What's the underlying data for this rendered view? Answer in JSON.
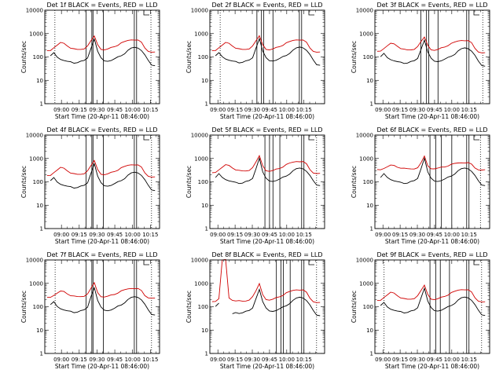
{
  "chart_data": [
    {
      "type": "line",
      "title": "Det 1f BLACK = Events, RED = LLD",
      "ylabel": "Counts/sec",
      "xlabel": "Start Time (20-Apr-11 08:46:00)",
      "yscale": "log",
      "ylim": [
        1,
        10000
      ],
      "y_tick_labels": [
        "1",
        "10",
        "100",
        "1000",
        "10000"
      ],
      "x_tick_labels": [
        "09:00",
        "09:15",
        "09:30",
        "09:45",
        "10:00",
        "10:15"
      ],
      "series": [
        {
          "color": "#000000",
          "values": [
            null,
            110,
            150,
            105,
            82,
            70,
            62,
            58,
            55,
            58,
            62,
            68,
            90,
            240,
            630,
            170,
            90,
            72,
            68,
            70,
            80,
            95,
            115,
            140,
            180,
            230,
            260,
            250,
            200,
            120,
            70,
            48,
            44
          ]
        },
        {
          "color": "#d00000",
          "values": [
            180,
            200,
            260,
            320,
            400,
            360,
            300,
            240,
            210,
            200,
            210,
            230,
            320,
            480,
            780,
            360,
            220,
            200,
            210,
            240,
            280,
            320,
            380,
            440,
            510,
            560,
            560,
            520,
            420,
            260,
            180,
            160,
            155
          ]
        }
      ]
    },
    {
      "type": "line",
      "title": "Det 2f BLACK = Events, RED = LLD",
      "ylabel": "Counts/sec",
      "xlabel": "Start Time (20-Apr-11 08:46:00)",
      "yscale": "log",
      "ylim": [
        1,
        10000
      ],
      "y_tick_labels": [
        "1",
        "10",
        "100",
        "1000",
        "10000"
      ],
      "x_tick_labels": [
        "09:00",
        "09:15",
        "09:30",
        "09:45",
        "10:00",
        "10:15"
      ],
      "series": [
        {
          "color": "#000000",
          "values": [
            null,
            110,
            150,
            110,
            85,
            72,
            64,
            60,
            57,
            60,
            64,
            70,
            92,
            250,
            650,
            175,
            92,
            74,
            70,
            72,
            82,
            98,
            118,
            145,
            185,
            235,
            265,
            255,
            205,
            125,
            72,
            50,
            46
          ]
        },
        {
          "color": "#d00000",
          "values": [
            180,
            200,
            260,
            320,
            400,
            360,
            300,
            240,
            210,
            200,
            210,
            230,
            320,
            480,
            790,
            360,
            220,
            200,
            210,
            240,
            280,
            320,
            380,
            440,
            510,
            560,
            560,
            520,
            420,
            260,
            180,
            160,
            155
          ]
        }
      ]
    },
    {
      "type": "line",
      "title": "Det 3f BLACK = Events, RED = LLD",
      "ylabel": "Counts/sec",
      "xlabel": "Start Time (20-Apr-11 08:46:00)",
      "yscale": "log",
      "ylim": [
        1,
        10000
      ],
      "y_tick_labels": [
        "1",
        "10",
        "100",
        "1000",
        "10000"
      ],
      "x_tick_labels": [
        "09:00",
        "09:15",
        "09:30",
        "09:45",
        "10:00",
        "10:15"
      ],
      "series": [
        {
          "color": "#000000",
          "values": [
            null,
            100,
            140,
            100,
            80,
            68,
            60,
            56,
            54,
            56,
            60,
            66,
            86,
            220,
            560,
            160,
            86,
            70,
            66,
            68,
            76,
            90,
            110,
            130,
            170,
            215,
            245,
            235,
            190,
            115,
            66,
            46,
            42
          ]
        },
        {
          "color": "#d00000",
          "values": [
            170,
            190,
            240,
            300,
            370,
            340,
            290,
            230,
            200,
            190,
            200,
            220,
            300,
            450,
            700,
            340,
            210,
            190,
            200,
            230,
            270,
            310,
            360,
            420,
            480,
            530,
            530,
            490,
            400,
            250,
            170,
            150,
            145
          ]
        }
      ]
    },
    {
      "type": "line",
      "title": "Det 4f BLACK = Events, RED = LLD",
      "ylabel": "Counts/sec",
      "xlabel": "Start Time (20-Apr-11 08:46:00)",
      "yscale": "log",
      "ylim": [
        1,
        10000
      ],
      "y_tick_labels": [
        "1",
        "10",
        "100",
        "1000",
        "10000"
      ],
      "x_tick_labels": [
        "09:00",
        "09:15",
        "09:30",
        "09:45",
        "10:00",
        "10:15"
      ],
      "series": [
        {
          "color": "#000000",
          "values": [
            null,
            110,
            150,
            105,
            82,
            70,
            62,
            58,
            55,
            58,
            62,
            68,
            90,
            240,
            640,
            170,
            90,
            72,
            68,
            70,
            80,
            95,
            115,
            140,
            180,
            230,
            260,
            250,
            200,
            120,
            70,
            48,
            44
          ]
        },
        {
          "color": "#d00000",
          "values": [
            180,
            200,
            260,
            320,
            400,
            360,
            300,
            240,
            210,
            200,
            210,
            230,
            320,
            480,
            800,
            360,
            220,
            200,
            210,
            240,
            280,
            320,
            380,
            440,
            510,
            560,
            560,
            520,
            420,
            260,
            180,
            160,
            155
          ]
        }
      ]
    },
    {
      "type": "line",
      "title": "Det 5f BLACK = Events, RED = LLD",
      "ylabel": "Counts/sec",
      "xlabel": "Start Time (20-Apr-11 08:46:00)",
      "yscale": "log",
      "ylim": [
        1,
        10000
      ],
      "y_tick_labels": [
        "1",
        "10",
        "100",
        "1000",
        "10000"
      ],
      "x_tick_labels": [
        "09:00",
        "09:15",
        "09:30",
        "09:45",
        "10:00",
        "10:15"
      ],
      "series": [
        {
          "color": "#000000",
          "values": [
            null,
            150,
            220,
            165,
            130,
            110,
            98,
            90,
            86,
            90,
            98,
            108,
            140,
            380,
            1100,
            260,
            140,
            115,
            108,
            112,
            125,
            150,
            180,
            220,
            280,
            350,
            390,
            375,
            300,
            185,
            110,
            78,
            72
          ]
        },
        {
          "color": "#d00000",
          "values": [
            240,
            270,
            340,
            420,
            520,
            470,
            400,
            330,
            290,
            280,
            290,
            320,
            440,
            700,
            1300,
            520,
            310,
            280,
            290,
            330,
            380,
            440,
            520,
            610,
            700,
            770,
            770,
            720,
            580,
            360,
            250,
            225,
            220
          ]
        }
      ]
    },
    {
      "type": "line",
      "title": "Det 6f BLACK = Events, RED = LLD",
      "ylabel": "Counts/sec",
      "xlabel": "Start Time (20-Apr-11 08:46:00)",
      "yscale": "log",
      "ylim": [
        1,
        10000
      ],
      "y_tick_labels": [
        "1",
        "10",
        "100",
        "1000",
        "10000"
      ],
      "x_tick_labels": [
        "09:00",
        "09:15",
        "09:30",
        "09:45",
        "10:00",
        "10:15"
      ],
      "series": [
        {
          "color": "#000000",
          "values": [
            null,
            150,
            220,
            165,
            130,
            110,
            98,
            90,
            86,
            90,
            98,
            108,
            140,
            380,
            1100,
            260,
            140,
            115,
            108,
            112,
            125,
            150,
            180,
            220,
            280,
            350,
            390,
            375,
            300,
            185,
            110,
            78,
            72
          ]
        },
        {
          "color": "#d00000",
          "values": [
            330,
            350,
            390,
            440,
            500,
            470,
            430,
            390,
            360,
            350,
            355,
            370,
            430,
            640,
            1250,
            520,
            380,
            360,
            370,
            400,
            440,
            480,
            530,
            590,
            640,
            680,
            680,
            650,
            560,
            420,
            340,
            320,
            315
          ]
        }
      ]
    },
    {
      "type": "line",
      "title": "Det 7f BLACK = Events, RED = LLD",
      "ylabel": "Counts/sec",
      "xlabel": "Start Time (20-Apr-11 08:46:00)",
      "yscale": "log",
      "ylim": [
        1,
        10000
      ],
      "y_tick_labels": [
        "1",
        "10",
        "100",
        "1000",
        "10000"
      ],
      "x_tick_labels": [
        "09:00",
        "09:15",
        "09:30",
        "09:45",
        "10:00",
        "10:15"
      ],
      "series": [
        {
          "color": "#000000",
          "values": [
            null,
            120,
            160,
            110,
            85,
            72,
            64,
            60,
            57,
            60,
            64,
            70,
            95,
            280,
            700,
            180,
            95,
            76,
            70,
            72,
            82,
            100,
            120,
            150,
            190,
            240,
            270,
            260,
            210,
            125,
            72,
            50,
            46
          ]
        },
        {
          "color": "#d00000",
          "values": [
            250,
            270,
            320,
            380,
            450,
            420,
            360,
            300,
            270,
            260,
            270,
            290,
            380,
            600,
            1050,
            430,
            280,
            260,
            270,
            300,
            340,
            390,
            450,
            510,
            580,
            630,
            630,
            590,
            480,
            320,
            250,
            230,
            225
          ]
        }
      ]
    },
    {
      "type": "line",
      "title": "Det 8f BLACK = Events, RED = LLD",
      "ylabel": "Counts/sec",
      "xlabel": "Start Time (20-Apr-11 08:46:00)",
      "yscale": "log",
      "ylim": [
        1,
        10000
      ],
      "y_tick_labels": [
        "1",
        "10",
        "100",
        "1000",
        "10000"
      ],
      "x_tick_labels": [
        "09:00",
        "09:15",
        "09:30",
        "09:45",
        "10:00",
        "10:15"
      ],
      "series": [
        {
          "color": "#000000",
          "values": [
            null,
            100,
            140,
            null,
            null,
            null,
            48,
            52,
            52,
            56,
            60,
            66,
            88,
            230,
            590,
            160,
            86,
            70,
            66,
            68,
            78,
            92,
            112,
            138,
            176,
            225,
            255,
            245,
            196,
            118,
            68,
            47,
            43
          ]
        },
        {
          "color": "#d00000",
          "values": [
            160,
            180,
            230,
            10000,
            10000,
            220,
            190,
            180,
            170,
            165,
            175,
            200,
            290,
            470,
            960,
            350,
            210,
            190,
            200,
            230,
            270,
            310,
            370,
            430,
            500,
            550,
            550,
            510,
            410,
            250,
            170,
            150,
            145
          ]
        }
      ]
    },
    {
      "type": "line",
      "title": "Det 9f BLACK = Events, RED = LLD",
      "ylabel": "Counts/sec",
      "xlabel": "Start Time (20-Apr-11 08:46:00)",
      "yscale": "log",
      "ylim": [
        1,
        10000
      ],
      "y_tick_labels": [
        "1",
        "10",
        "100",
        "1000",
        "10000"
      ],
      "x_tick_labels": [
        "09:00",
        "09:15",
        "09:30",
        "09:45",
        "10:00",
        "10:15"
      ],
      "series": [
        {
          "color": "#000000",
          "values": [
            null,
            110,
            150,
            105,
            82,
            70,
            62,
            58,
            55,
            58,
            62,
            68,
            90,
            250,
            660,
            170,
            90,
            72,
            68,
            70,
            80,
            95,
            115,
            140,
            180,
            230,
            260,
            250,
            200,
            120,
            70,
            48,
            44
          ]
        },
        {
          "color": "#d00000",
          "values": [
            180,
            200,
            260,
            320,
            400,
            360,
            300,
            240,
            210,
            200,
            210,
            230,
            320,
            490,
            820,
            360,
            220,
            200,
            210,
            240,
            280,
            320,
            380,
            440,
            510,
            560,
            560,
            520,
            420,
            260,
            180,
            160,
            155
          ]
        }
      ]
    }
  ]
}
